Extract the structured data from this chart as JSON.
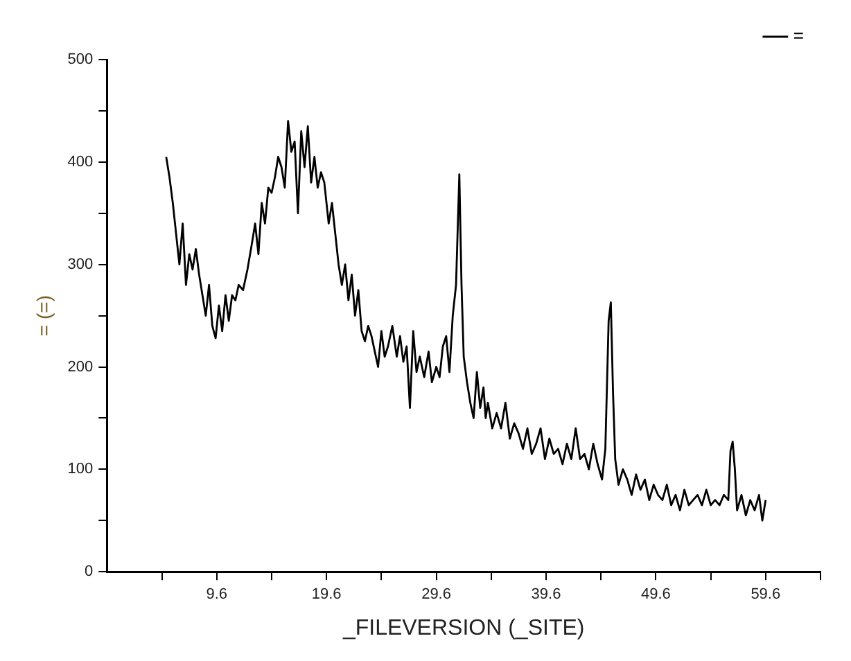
{
  "chart_data": {
    "type": "line",
    "xlabel": "_FILEVERSION (_SITE)",
    "ylabel": "= (=)",
    "xlim": [
      -0.4,
      64.6
    ],
    "xticks": [
      {
        "value": 4.6,
        "label": null
      },
      9.6,
      {
        "value": 14.6,
        "label": null
      },
      19.6,
      {
        "value": 24.6,
        "label": null
      },
      29.6,
      {
        "value": 34.6,
        "label": null
      },
      39.6,
      {
        "value": 44.6,
        "label": null
      },
      49.6,
      {
        "value": 54.6,
        "label": null
      },
      59.6,
      {
        "value": 64.6,
        "label": null
      }
    ],
    "ylim": [
      0,
      500
    ],
    "yticks": [
      0,
      {
        "value": 50,
        "label": null
      },
      100,
      {
        "value": 150,
        "label": null
      },
      200,
      {
        "value": 250,
        "label": null
      },
      300,
      {
        "value": 350,
        "label": null
      },
      400,
      {
        "value": 450,
        "label": null
      },
      500
    ],
    "grid": false,
    "legend": "top right",
    "marker": "none",
    "line_style": "solid",
    "series": [
      {
        "name": "=",
        "color": "#000000",
        "x": [
          5.0,
          5.3,
          5.6,
          5.9,
          6.2,
          6.5,
          6.8,
          7.1,
          7.4,
          7.7,
          8.0,
          8.3,
          8.6,
          8.9,
          9.2,
          9.5,
          9.8,
          10.1,
          10.4,
          10.7,
          11.0,
          11.3,
          11.6,
          12.0,
          12.4,
          12.8,
          13.1,
          13.4,
          13.7,
          14.0,
          14.3,
          14.6,
          14.9,
          15.2,
          15.5,
          15.8,
          16.1,
          16.4,
          16.7,
          17.0,
          17.3,
          17.6,
          17.9,
          18.2,
          18.5,
          18.8,
          19.1,
          19.4,
          19.8,
          20.1,
          20.4,
          20.7,
          21.0,
          21.3,
          21.6,
          21.9,
          22.2,
          22.5,
          22.8,
          23.1,
          23.4,
          23.7,
          24.0,
          24.3,
          24.6,
          24.9,
          25.2,
          25.6,
          26.0,
          26.3,
          26.6,
          26.9,
          27.2,
          27.5,
          27.8,
          28.1,
          28.5,
          28.9,
          29.2,
          29.6,
          29.9,
          30.2,
          30.5,
          30.8,
          31.1,
          31.4,
          31.7,
          31.9,
          32.1,
          32.4,
          32.7,
          33.0,
          33.3,
          33.6,
          33.9,
          34.1,
          34.3,
          34.7,
          35.1,
          35.5,
          35.9,
          36.3,
          36.7,
          37.1,
          37.5,
          37.9,
          38.3,
          38.7,
          39.1,
          39.5,
          39.9,
          40.3,
          40.7,
          41.1,
          41.5,
          41.9,
          42.3,
          42.7,
          43.1,
          43.5,
          43.9,
          44.3,
          44.7,
          45.0,
          45.3,
          45.5,
          45.7,
          45.9,
          46.2,
          46.6,
          47.0,
          47.4,
          47.8,
          48.2,
          48.6,
          49.0,
          49.4,
          49.8,
          50.2,
          50.6,
          51.0,
          51.4,
          51.8,
          52.2,
          52.6,
          53.0,
          53.4,
          53.8,
          54.2,
          54.6,
          55.0,
          55.4,
          55.8,
          56.2,
          56.4,
          56.6,
          56.8,
          57.0,
          57.4,
          57.8,
          58.2,
          58.6,
          59.0,
          59.3,
          59.6
        ],
        "values": [
          405,
          385,
          360,
          330,
          300,
          340,
          280,
          310,
          295,
          315,
          290,
          270,
          250,
          280,
          240,
          228,
          260,
          235,
          270,
          245,
          270,
          265,
          280,
          275,
          295,
          320,
          340,
          310,
          360,
          340,
          375,
          370,
          385,
          405,
          395,
          375,
          440,
          410,
          420,
          350,
          430,
          395,
          435,
          380,
          405,
          375,
          390,
          380,
          340,
          360,
          330,
          300,
          280,
          300,
          265,
          290,
          250,
          275,
          235,
          225,
          240,
          230,
          215,
          200,
          235,
          210,
          220,
          240,
          210,
          230,
          205,
          220,
          160,
          235,
          195,
          210,
          190,
          215,
          185,
          200,
          190,
          220,
          230,
          195,
          250,
          280,
          388,
          280,
          210,
          185,
          165,
          150,
          195,
          160,
          180,
          150,
          165,
          140,
          155,
          140,
          165,
          130,
          145,
          135,
          120,
          140,
          115,
          125,
          140,
          110,
          130,
          115,
          120,
          105,
          125,
          110,
          140,
          110,
          115,
          100,
          125,
          105,
          90,
          120,
          245,
          263,
          175,
          110,
          85,
          100,
          90,
          75,
          95,
          80,
          90,
          70,
          85,
          75,
          70,
          85,
          65,
          75,
          60,
          80,
          65,
          70,
          75,
          65,
          80,
          65,
          70,
          65,
          75,
          70,
          118,
          127,
          100,
          60,
          75,
          55,
          70,
          60,
          75,
          50,
          70
        ]
      }
    ]
  }
}
